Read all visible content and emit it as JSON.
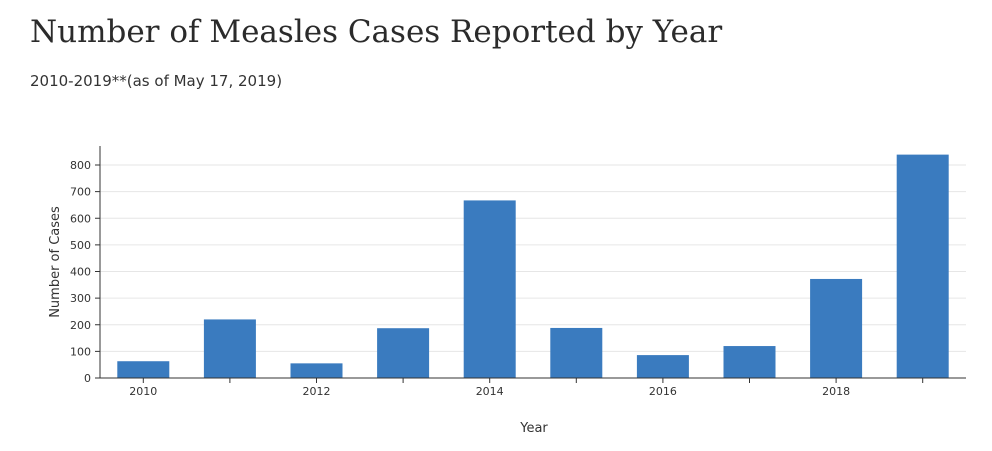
{
  "header": {
    "title": "Number of Measles Cases Reported by Year",
    "subtitle": "2010-2019**(as of May 17, 2019)"
  },
  "chart_data": {
    "type": "bar",
    "title": "Number of Measles Cases Reported by Year",
    "subtitle": "2010-2019**(as of May 17, 2019)",
    "xlabel": "Year",
    "ylabel": "Number of Cases",
    "categories": [
      2010,
      2011,
      2012,
      2013,
      2014,
      2015,
      2016,
      2017,
      2018,
      2019
    ],
    "values": [
      63,
      220,
      55,
      187,
      667,
      188,
      86,
      120,
      372,
      839
    ],
    "x_ticks": [
      "2010",
      "2012",
      "2014",
      "2016",
      "2018"
    ],
    "y_ticks": [
      0,
      100,
      200,
      300,
      400,
      500,
      600,
      700,
      800
    ],
    "ylim": [
      0,
      880
    ],
    "grid": true,
    "legend": "none",
    "bar_color": "#3a7bbf"
  }
}
